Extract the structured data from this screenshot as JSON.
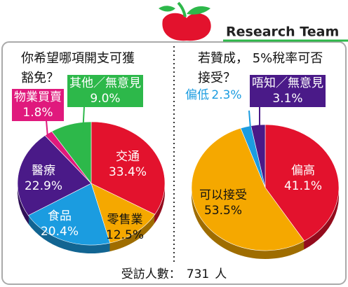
{
  "brand": "Research Team",
  "footer": {
    "label": "受訪人數：",
    "count": 731,
    "unit": "人"
  },
  "chart_data": [
    {
      "type": "pie",
      "title": "你希望哪項開支可獲豁免？",
      "categories": [
        "交通",
        "零售業",
        "食品",
        "醫療",
        "物業買賣",
        "其他／無意見"
      ],
      "values": [
        33.4,
        12.5,
        20.4,
        22.9,
        1.8,
        9.0
      ],
      "value_labels": [
        "33.4%",
        "12.5%",
        "20.4%",
        "22.9%",
        "1.8%",
        "9.0%"
      ],
      "colors": [
        "#e3122d",
        "#f5a800",
        "#1b9ce0",
        "#4a1a88",
        "#e0197d",
        "#2db84a"
      ]
    },
    {
      "type": "pie",
      "title": "若贊成， 5%稅率可否接受？",
      "categories": [
        "偏高",
        "可以接受",
        "偏低",
        "唔知／無意見"
      ],
      "values": [
        41.1,
        53.5,
        2.3,
        3.1
      ],
      "value_labels": [
        "41.1%",
        "53.5%",
        "2.3%",
        "3.1%"
      ],
      "colors": [
        "#e3122d",
        "#f5a800",
        "#1b9ce0",
        "#4a1a88"
      ]
    }
  ]
}
